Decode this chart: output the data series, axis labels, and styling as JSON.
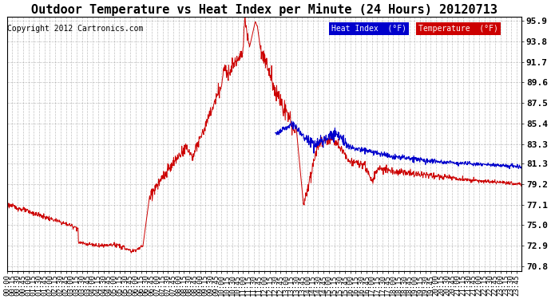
{
  "title": "Outdoor Temperature vs Heat Index per Minute (24 Hours) 20120713",
  "copyright": "Copyright 2012 Cartronics.com",
  "ylabel_ticks": [
    70.8,
    72.9,
    75.0,
    77.1,
    79.2,
    81.3,
    83.3,
    85.4,
    87.5,
    89.6,
    91.7,
    93.8,
    95.9
  ],
  "ymin": 70.3,
  "ymax": 96.3,
  "bg_color": "#ffffff",
  "grid_color": "#999999",
  "temp_color": "#cc0000",
  "heat_color": "#0000cc",
  "title_fontsize": 11,
  "tick_fontsize": 8,
  "note_fontsize": 7
}
